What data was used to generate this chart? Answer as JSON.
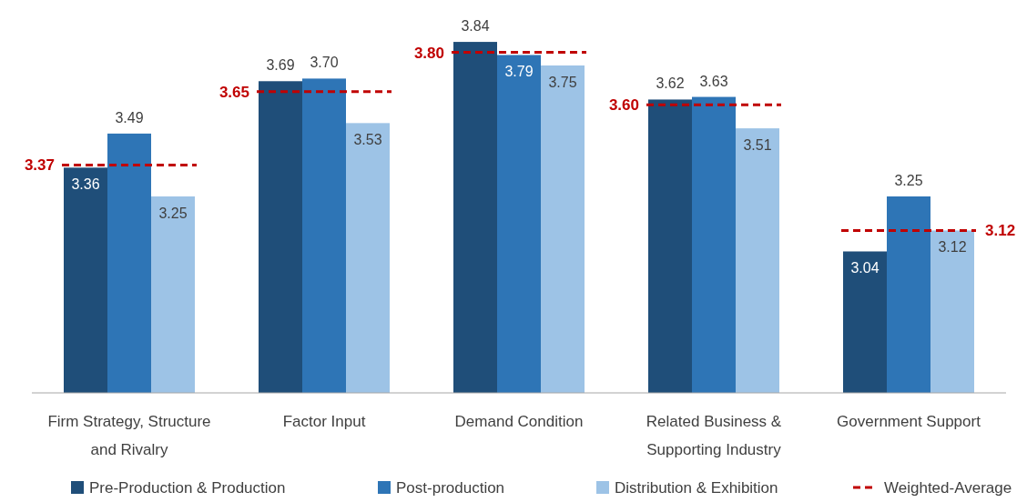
{
  "chart_data": {
    "type": "bar",
    "categories": [
      "Firm Strategy, Structure and Rivalry",
      "Factor Input",
      "Demand Condition",
      "Related Business & Supporting Industry",
      "Government Support"
    ],
    "series": [
      {
        "name": "Pre-Production & Production",
        "color": "#1f4e79",
        "values": [
          3.36,
          3.69,
          3.84,
          3.62,
          3.04
        ]
      },
      {
        "name": "Post-production",
        "color": "#2e75b6",
        "values": [
          3.49,
          3.7,
          3.79,
          3.63,
          3.25
        ],
        "value_labels": [
          "3.49",
          "3.70",
          "3.79",
          "3.63",
          "3.25"
        ]
      },
      {
        "name": "Distribution & Exhibition",
        "color": "#9dc3e6",
        "values": [
          3.25,
          3.53,
          3.75,
          3.51,
          3.12
        ]
      }
    ],
    "ref_lines": [
      {
        "axis": "y",
        "value": 3.37,
        "label": "3.37",
        "color": "#c00000",
        "line_style": "dashed"
      },
      {
        "axis": "y",
        "value": 3.65,
        "label": "3.65",
        "color": "#c00000",
        "line_style": "dashed"
      },
      {
        "axis": "y",
        "value": 3.8,
        "label": "3.80",
        "color": "#c00000",
        "line_style": "dashed"
      },
      {
        "axis": "y",
        "value": 3.6,
        "label": "3.60",
        "color": "#c00000",
        "line_style": "dashed"
      },
      {
        "axis": "y",
        "value": 3.12,
        "label": "3.12",
        "color": "#c00000",
        "line_style": "dashed"
      }
    ],
    "annotations": [
      "Weighted-Average"
    ],
    "ylim": [
      2.5,
      4.0
    ],
    "tick_labels": "x",
    "legend": "bottom",
    "data_labels": true
  }
}
